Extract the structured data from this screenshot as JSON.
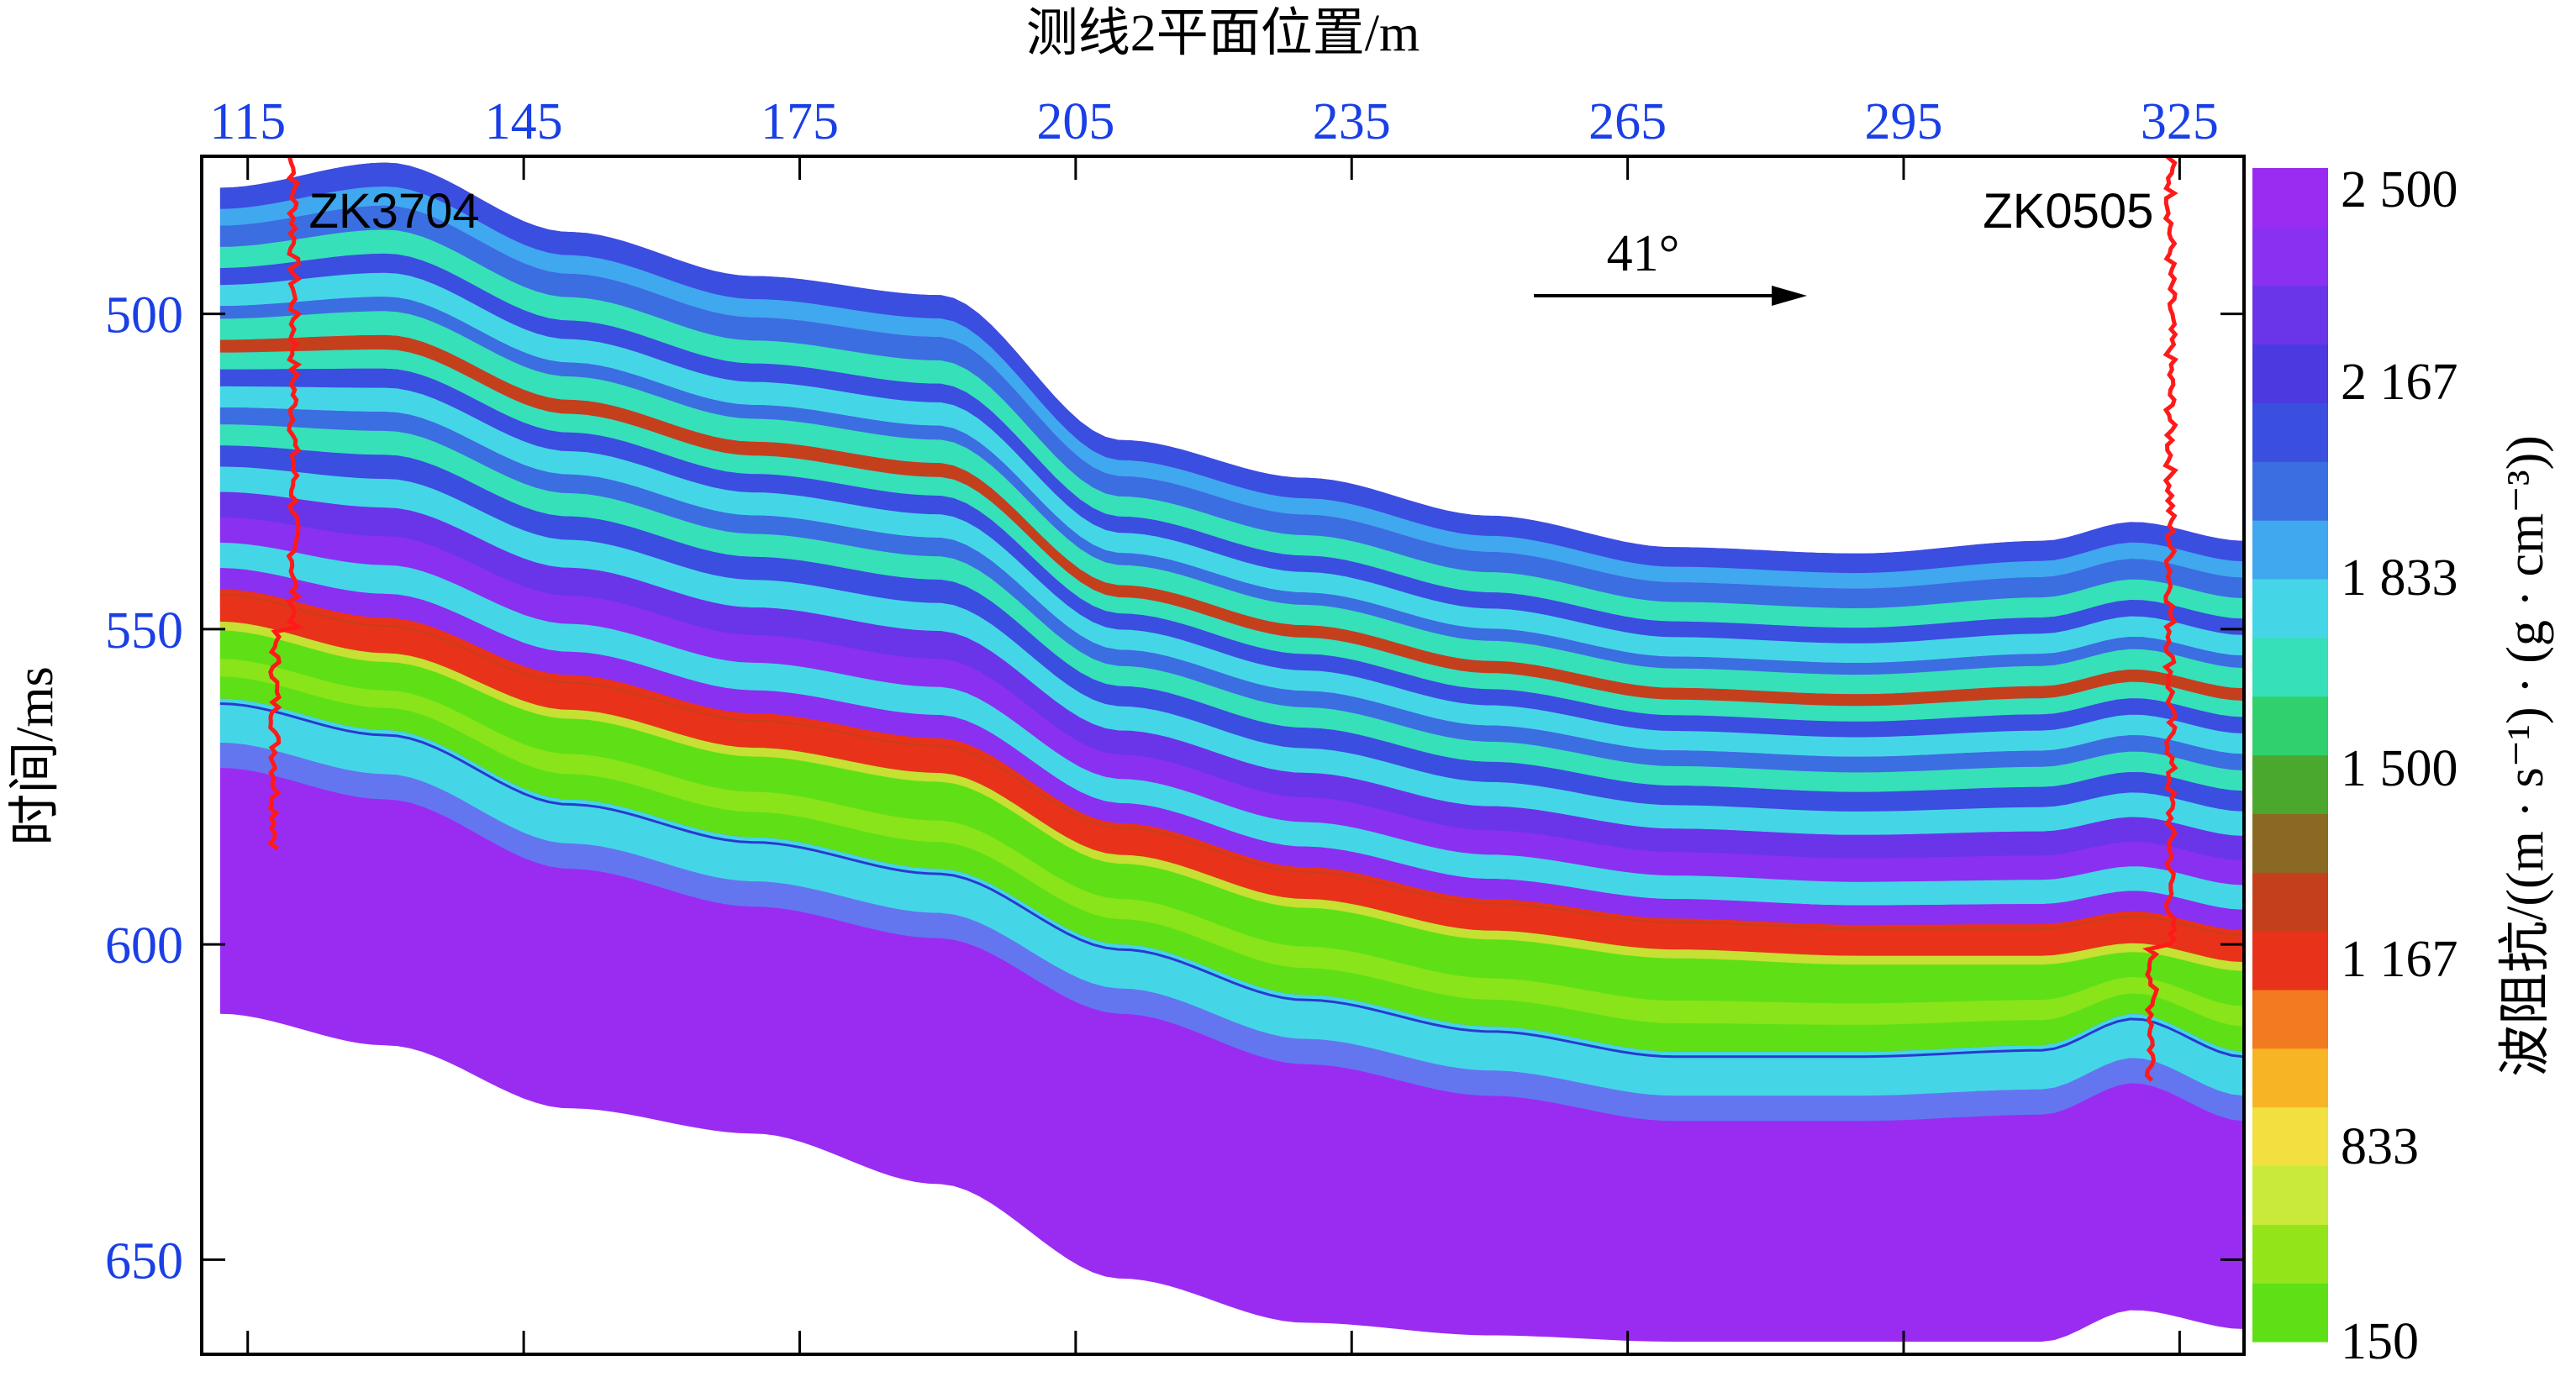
{
  "chart_data": {
    "type": "heatmap",
    "xlabel": "测线2平面位置/m",
    "ylabel": "时间/ms",
    "x_ticks": [
      115,
      145,
      175,
      205,
      235,
      265,
      295,
      325
    ],
    "y_ticks": [
      500,
      550,
      600,
      650
    ],
    "xlim": [
      110,
      332
    ],
    "ylim": [
      475,
      665
    ],
    "colorbar": {
      "label": "波阻抗/((m · s⁻¹) · (g · cm⁻³))",
      "ticks": [
        "2 500",
        "2 167",
        "1 833",
        "1 500",
        "1 167",
        "833",
        "150"
      ],
      "tick_values": [
        2500,
        2167,
        1833,
        1500,
        1167,
        833,
        150
      ],
      "range": [
        150,
        2500
      ],
      "colors": [
        "#5fe016",
        "#93e51a",
        "#c9ea3a",
        "#f2e040",
        "#f7b526",
        "#f27a20",
        "#e8331a",
        "#c4401c",
        "#8a6a22",
        "#4ba82f",
        "#30d06d",
        "#36e0b8",
        "#44d6e6",
        "#3fa8ee",
        "#3b6ee0",
        "#3a4ee0",
        "#4a3ae0",
        "#6a35e8",
        "#8a30f0",
        "#9a2cf2"
      ]
    },
    "wells": [
      {
        "name": "ZK3704",
        "x": 120
      },
      {
        "name": "ZK0505",
        "x": 324
      }
    ],
    "annotation": {
      "text": "41°",
      "direction": "right"
    },
    "layers": {
      "data_top_ms": [
        480,
        476,
        487,
        494,
        497,
        520,
        526,
        532,
        537,
        538,
        536,
        533,
        536
      ],
      "data_bottom_ms": [
        611,
        616,
        626,
        630,
        638,
        653,
        660,
        662,
        663,
        663,
        663,
        658,
        661
      ],
      "green_top_ms": [
        547,
        552,
        561,
        567,
        571,
        584,
        591,
        596,
        599,
        600,
        600,
        598,
        601
      ],
      "green_bottom_ms": [
        561,
        566,
        577,
        583,
        588,
        600,
        608,
        613,
        617,
        617,
        616,
        611,
        617
      ],
      "x_positions": [
        112,
        130,
        150,
        170,
        190,
        210,
        230,
        250,
        270,
        290,
        310,
        320,
        332
      ]
    }
  }
}
